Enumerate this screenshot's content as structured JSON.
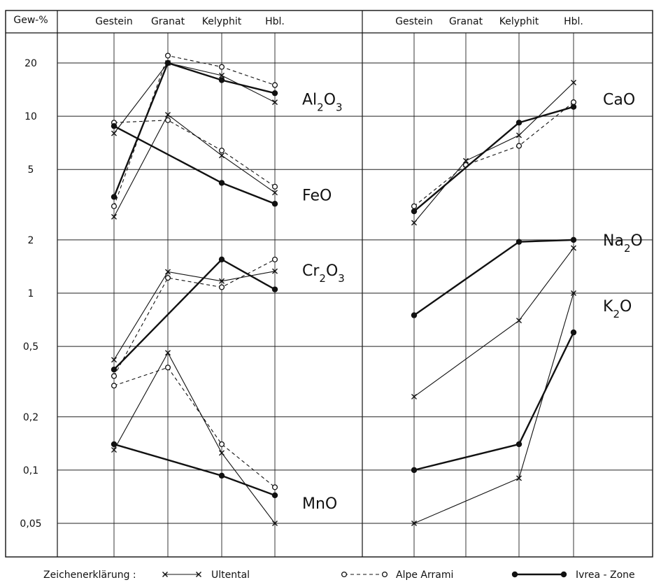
{
  "chart_data": {
    "type": "line",
    "y_scale": "log",
    "ylim": [
      0.04,
      30
    ],
    "y_axis_title": "Gew-%",
    "y_ticks": [
      {
        "value": 20,
        "label": "20"
      },
      {
        "value": 10,
        "label": "10"
      },
      {
        "value": 5,
        "label": "5"
      },
      {
        "value": 2,
        "label": "2"
      },
      {
        "value": 1,
        "label": "1"
      },
      {
        "value": 0.5,
        "label": "0,5"
      },
      {
        "value": 0.2,
        "label": "0,2"
      },
      {
        "value": 0.1,
        "label": "0,1"
      },
      {
        "value": 0.05,
        "label": "0,05"
      }
    ],
    "categories": [
      "Gestein",
      "Granat",
      "Kelyphit",
      "Hbl."
    ],
    "legend": {
      "title": "Zeichenerklärung :",
      "entries": [
        {
          "key": "ultental",
          "label": "Ultental"
        },
        {
          "key": "alpe",
          "label": "Alpe Arrami"
        },
        {
          "key": "ivrea",
          "label": "Ivrea - Zone"
        }
      ]
    },
    "panels": [
      {
        "oxides": [
          {
            "sub": [
              "Al",
              "2",
              "O",
              "3"
            ],
            "label_value": 12.5,
            "series": {
              "ultental": [
                8,
                20,
                17,
                12
              ],
              "alpe": [
                3.1,
                22,
                19,
                15
              ],
              "ivrea": [
                3.5,
                20,
                16,
                13.5
              ]
            }
          },
          {
            "sub": [
              "FeO"
            ],
            "label_value": 3.6,
            "series": {
              "ultental": [
                2.7,
                10.2,
                6.0,
                3.7
              ],
              "alpe": [
                9.2,
                9.5,
                6.4,
                4.0
              ],
              "ivrea": [
                8.8,
                null,
                4.2,
                3.2
              ]
            }
          },
          {
            "sub": [
              "Cr",
              "2",
              "O",
              "3"
            ],
            "label_value": 1.35,
            "series": {
              "ultental": [
                0.42,
                1.32,
                1.17,
                1.33
              ],
              "alpe": [
                0.34,
                1.22,
                1.08,
                1.55
              ],
              "ivrea": [
                0.37,
                null,
                1.55,
                1.05
              ]
            }
          },
          {
            "sub": [
              "MnO"
            ],
            "label_value": 0.065,
            "series": {
              "ultental": [
                0.13,
                0.46,
                0.125,
                0.05
              ],
              "alpe": [
                0.3,
                0.38,
                0.14,
                0.08
              ],
              "ivrea": [
                0.14,
                null,
                0.093,
                0.072
              ]
            }
          }
        ]
      },
      {
        "oxides": [
          {
            "sub": [
              "CaO"
            ],
            "label_value": 12.5,
            "series": {
              "ultental": [
                2.5,
                5.6,
                7.8,
                15.5
              ],
              "alpe": [
                3.1,
                5.3,
                6.8,
                12
              ],
              "ivrea": [
                2.9,
                null,
                9.2,
                11.3
              ]
            }
          },
          {
            "sub": [
              "Na",
              "2",
              "O"
            ],
            "label_value": 2.0,
            "series": {
              "ultental": [
                0.26,
                null,
                0.7,
                1.8
              ],
              "alpe": [
                null,
                null,
                null,
                null
              ],
              "ivrea": [
                0.75,
                null,
                1.95,
                2.0
              ]
            }
          },
          {
            "sub": [
              "K",
              "2",
              "O"
            ],
            "label_value": 0.85,
            "series": {
              "ultental": [
                0.05,
                null,
                0.09,
                1.0
              ],
              "alpe": [
                null,
                null,
                null,
                null
              ],
              "ivrea": [
                0.1,
                null,
                0.14,
                0.6
              ]
            }
          }
        ]
      }
    ]
  }
}
